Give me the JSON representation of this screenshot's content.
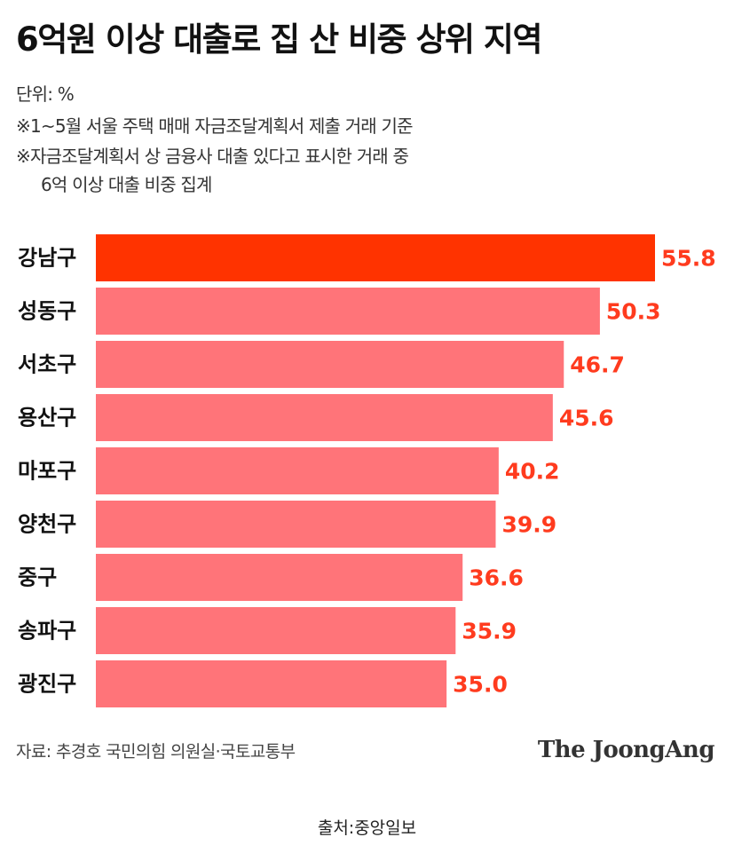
{
  "header": {
    "title": "6억원 이상 대출로 집 산 비중 상위 지역",
    "unit": "단위: %",
    "note1": "※1~5월 서울 주택 매매 자금조달계획서 제출 거래 기준",
    "note2": "※자금조달계획서 상 금융사 대출 있다고 표시한 거래 중",
    "note3": "6억 이상 대출 비중 집계"
  },
  "footer": {
    "source": "자료: 추경호 국민의힘 의원실·국토교통부",
    "logo": "The JoongAng",
    "credit": "출처:중앙일보"
  },
  "colors": {
    "highlight": "#FF3300",
    "bar": "#FF7479",
    "label": "#FF3B1E"
  },
  "chart_data": {
    "type": "bar",
    "orientation": "horizontal",
    "categories": [
      "강남구",
      "성동구",
      "서초구",
      "용산구",
      "마포구",
      "양천구",
      "중구",
      "송파구",
      "광진구"
    ],
    "values": [
      55.8,
      50.3,
      46.7,
      45.6,
      40.2,
      39.9,
      36.6,
      35.9,
      35.0
    ],
    "value_labels": [
      "55.8",
      "50.3",
      "46.7",
      "45.6",
      "40.2",
      "39.9",
      "36.6",
      "35.9",
      "35.0"
    ],
    "highlight_index": 0,
    "xlim": [
      0,
      55.8
    ],
    "grid": false,
    "legend": "none"
  }
}
